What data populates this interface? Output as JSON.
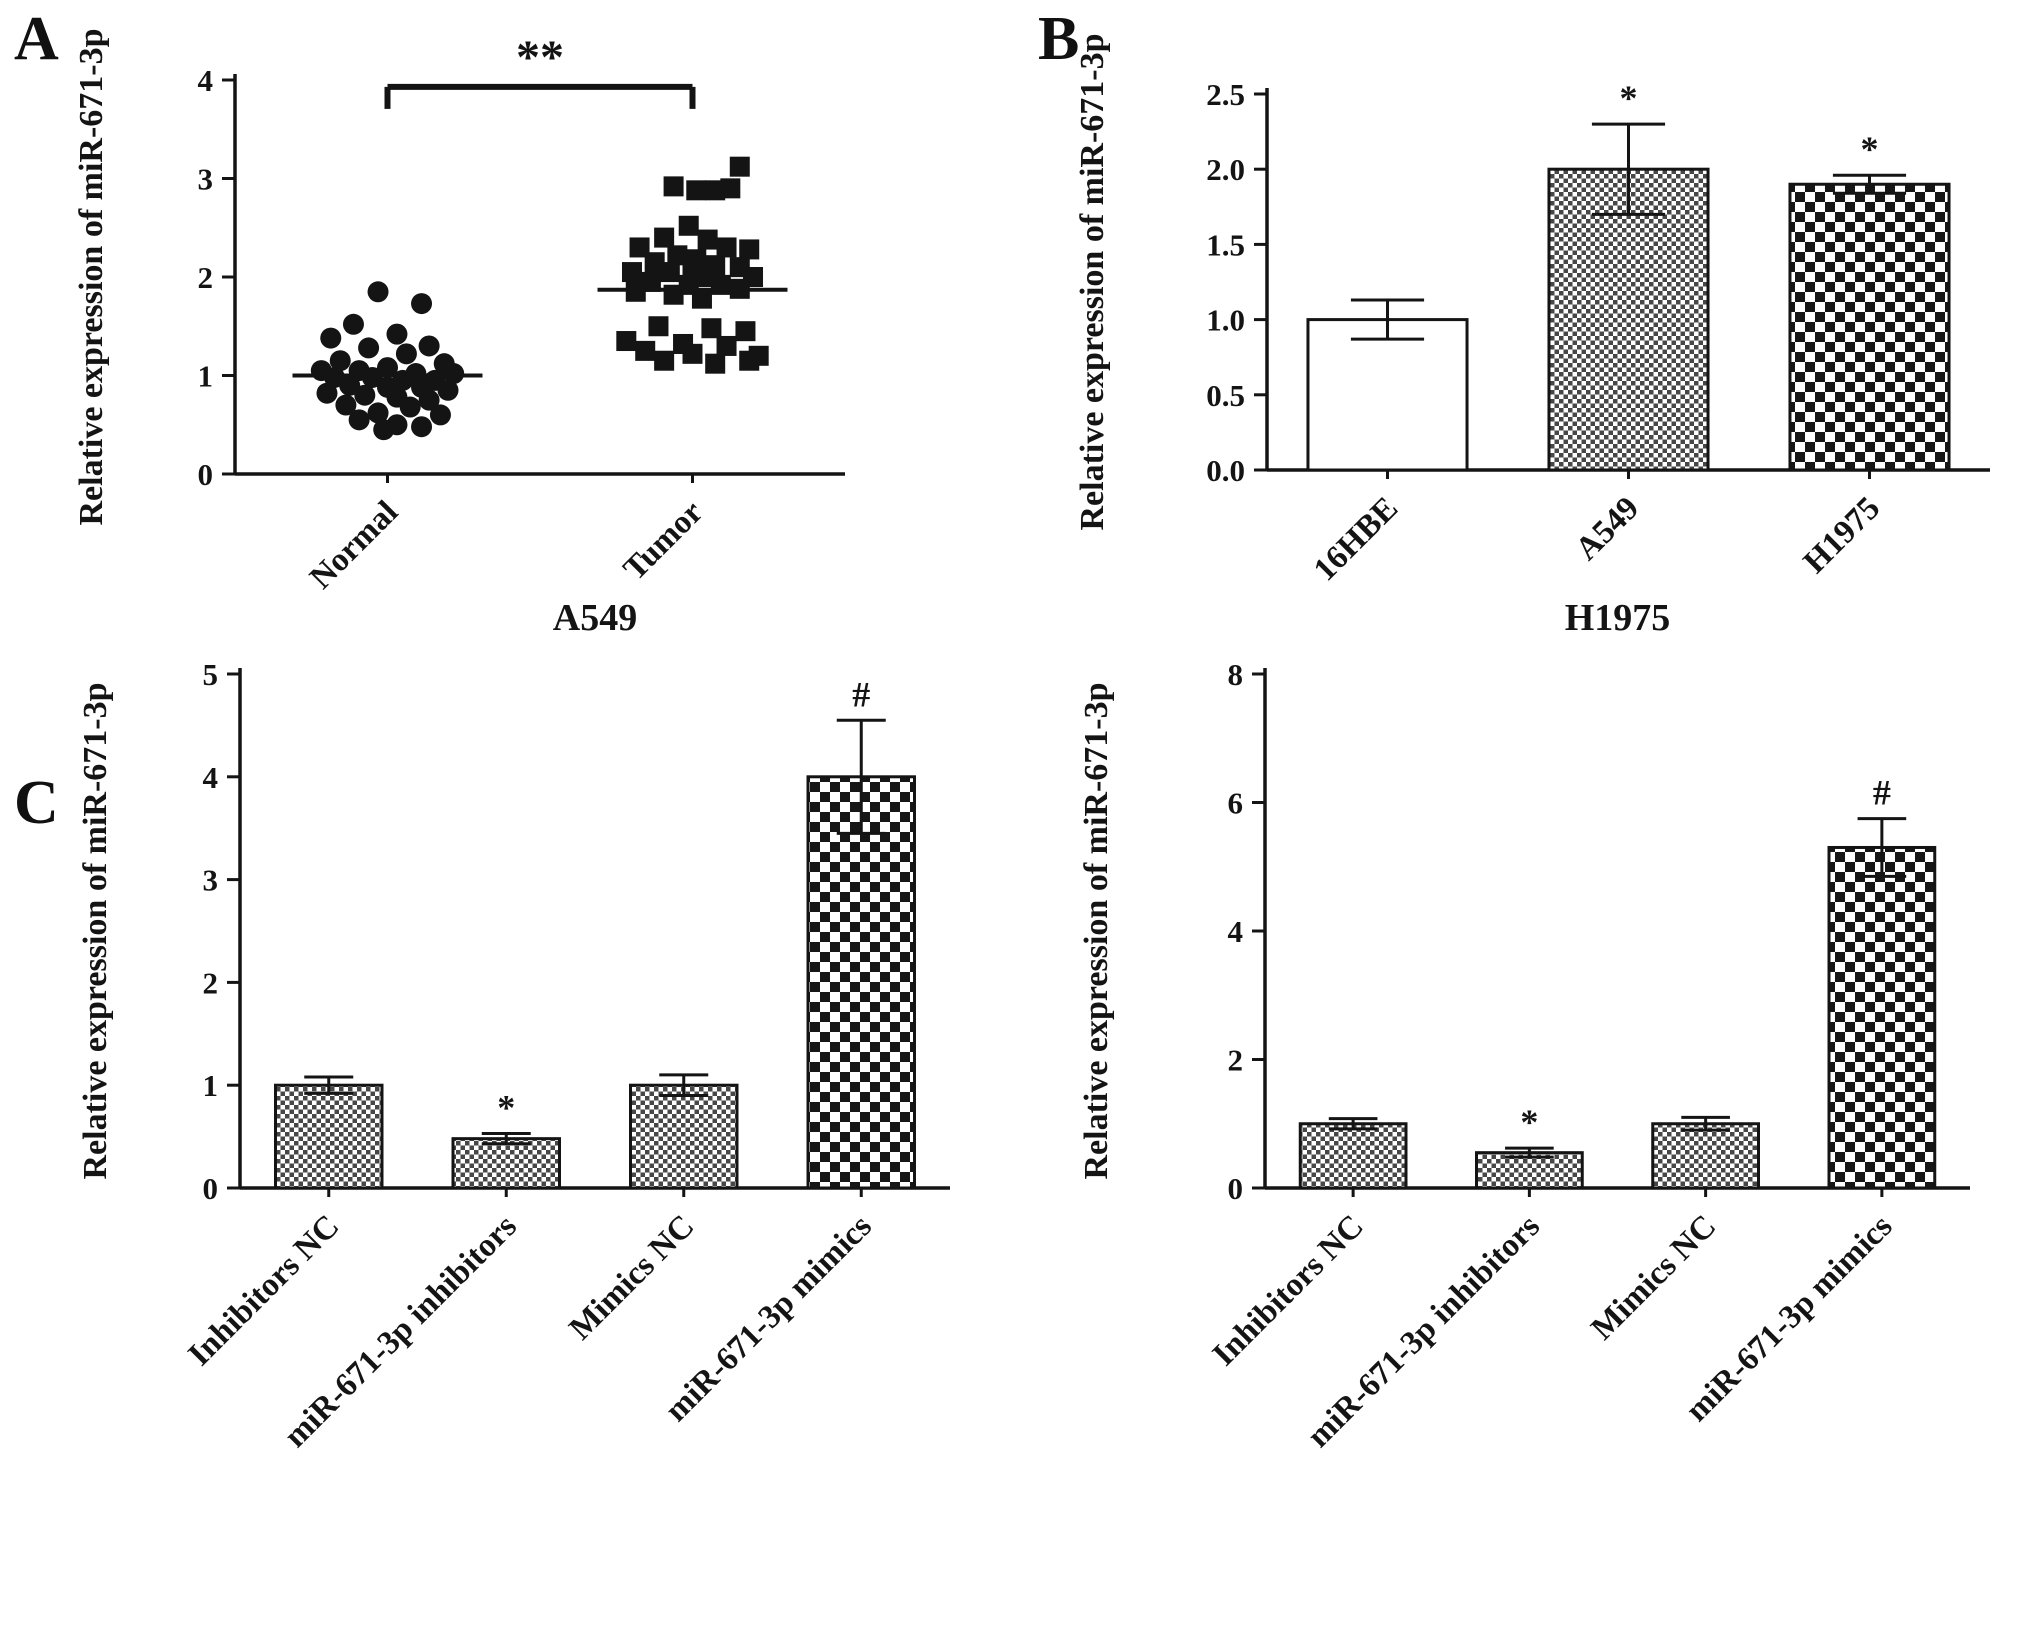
{
  "figure": {
    "panel_labels": {
      "a": "A",
      "b": "B",
      "c": "C"
    }
  },
  "chart_data": [
    {
      "id": "panelA",
      "type": "scatter",
      "ylabel": "Relative expression of miR-671-3p",
      "ylim": [
        0,
        4
      ],
      "yticks": [
        0,
        1,
        2,
        3,
        4
      ],
      "ytick_labels": [
        "0",
        "1",
        "2",
        "3",
        "4"
      ],
      "categories": [
        "Normal",
        "Tumor"
      ],
      "groups": [
        {
          "name": "Normal",
          "marker": "circle",
          "mean": 1.0,
          "points": [
            [
              -0.05,
              1.85
            ],
            [
              0.18,
              1.73
            ],
            [
              -0.18,
              1.52
            ],
            [
              -0.3,
              1.38
            ],
            [
              0.05,
              1.42
            ],
            [
              0.22,
              1.3
            ],
            [
              -0.1,
              1.28
            ],
            [
              0.1,
              1.22
            ],
            [
              -0.25,
              1.15
            ],
            [
              0.3,
              1.12
            ],
            [
              -0.35,
              1.05
            ],
            [
              -0.15,
              1.05
            ],
            [
              0,
              1.08
            ],
            [
              0.15,
              1.02
            ],
            [
              0.35,
              1.02
            ],
            [
              -0.28,
              0.98
            ],
            [
              -0.08,
              0.98
            ],
            [
              0.08,
              0.95
            ],
            [
              0.25,
              0.95
            ],
            [
              -0.2,
              0.9
            ],
            [
              0,
              0.88
            ],
            [
              0.18,
              0.88
            ],
            [
              0.32,
              0.85
            ],
            [
              -0.32,
              0.82
            ],
            [
              -0.12,
              0.8
            ],
            [
              0.05,
              0.78
            ],
            [
              0.22,
              0.75
            ],
            [
              -0.22,
              0.7
            ],
            [
              0.12,
              0.68
            ],
            [
              -0.05,
              0.62
            ],
            [
              0.28,
              0.6
            ],
            [
              -0.15,
              0.55
            ],
            [
              0.05,
              0.5
            ],
            [
              0.18,
              0.48
            ],
            [
              -0.02,
              0.45
            ]
          ]
        },
        {
          "name": "Tumor",
          "marker": "square",
          "mean": 1.87,
          "points": [
            [
              0.25,
              3.12
            ],
            [
              -0.1,
              2.92
            ],
            [
              0.02,
              2.88
            ],
            [
              0.12,
              2.88
            ],
            [
              0.2,
              2.9
            ],
            [
              -0.02,
              2.52
            ],
            [
              -0.15,
              2.4
            ],
            [
              0.08,
              2.38
            ],
            [
              -0.28,
              2.3
            ],
            [
              0.18,
              2.3
            ],
            [
              0.3,
              2.28
            ],
            [
              -0.08,
              2.22
            ],
            [
              0.02,
              2.18
            ],
            [
              -0.2,
              2.15
            ],
            [
              0.12,
              2.12
            ],
            [
              0.25,
              2.1
            ],
            [
              -0.32,
              2.05
            ],
            [
              -0.12,
              2.05
            ],
            [
              0,
              2.02
            ],
            [
              0.08,
              2
            ],
            [
              0.32,
              2
            ],
            [
              -0.22,
              1.95
            ],
            [
              -0.02,
              1.92
            ],
            [
              0.15,
              1.92
            ],
            [
              0.25,
              1.88
            ],
            [
              -0.3,
              1.85
            ],
            [
              -0.1,
              1.82
            ],
            [
              0.05,
              1.78
            ],
            [
              -0.18,
              1.5
            ],
            [
              0.1,
              1.48
            ],
            [
              0.28,
              1.45
            ],
            [
              -0.35,
              1.35
            ],
            [
              -0.05,
              1.32
            ],
            [
              0.18,
              1.3
            ],
            [
              -0.25,
              1.25
            ],
            [
              0,
              1.22
            ],
            [
              0.35,
              1.2
            ],
            [
              -0.15,
              1.15
            ],
            [
              0.12,
              1.12
            ],
            [
              0.3,
              1.15
            ]
          ]
        }
      ],
      "significance": {
        "label": "**",
        "y": 3.93
      }
    },
    {
      "id": "panelB",
      "type": "bar",
      "ylabel": "Relative expression of miR-671-3p",
      "ylim": [
        0,
        2.5
      ],
      "yticks": [
        0,
        0.5,
        1,
        1.5,
        2,
        2.5
      ],
      "ytick_labels": [
        "0.0",
        "0.5",
        "1.0",
        "1.5",
        "2.0",
        "2.5"
      ],
      "categories": [
        "16HBE",
        "A549",
        "H1975"
      ],
      "values": [
        1.0,
        2.0,
        1.9
      ],
      "errors": [
        0.13,
        0.3,
        0.06
      ],
      "annotations": [
        "",
        "*",
        "*"
      ],
      "patterns": [
        "plain",
        "fine",
        "checker"
      ]
    },
    {
      "id": "panelC1",
      "type": "bar",
      "title": "A549",
      "ylabel": "Relative expression of miR-671-3p",
      "ylim": [
        0,
        5
      ],
      "yticks": [
        0,
        1,
        2,
        3,
        4,
        5
      ],
      "ytick_labels": [
        "0",
        "1",
        "2",
        "3",
        "4",
        "5"
      ],
      "categories": [
        "Inhibitors NC",
        "miR-671-3p inhibitors",
        "Mimics NC",
        "miR-671-3p mimics"
      ],
      "values": [
        1.0,
        0.48,
        1.0,
        4.0
      ],
      "errors": [
        0.08,
        0.05,
        0.1,
        0.55
      ],
      "annotations": [
        "",
        "*",
        "",
        "#"
      ],
      "patterns": [
        "fine",
        "fine",
        "fine",
        "checker"
      ]
    },
    {
      "id": "panelC2",
      "type": "bar",
      "title": "H1975",
      "ylabel": "Relative expression of miR-671-3p",
      "ylim": [
        0,
        8
      ],
      "yticks": [
        0,
        2,
        4,
        6,
        8
      ],
      "ytick_labels": [
        "0",
        "2",
        "4",
        "6",
        "8"
      ],
      "categories": [
        "Inhibitors NC",
        "miR-671-3p inhibitors",
        "Mimics NC",
        "miR-671-3p mimics"
      ],
      "values": [
        1.0,
        0.55,
        1.0,
        5.3
      ],
      "errors": [
        0.08,
        0.07,
        0.1,
        0.45
      ],
      "annotations": [
        "",
        "*",
        "",
        "#"
      ],
      "patterns": [
        "fine",
        "fine",
        "fine",
        "checker"
      ]
    }
  ]
}
